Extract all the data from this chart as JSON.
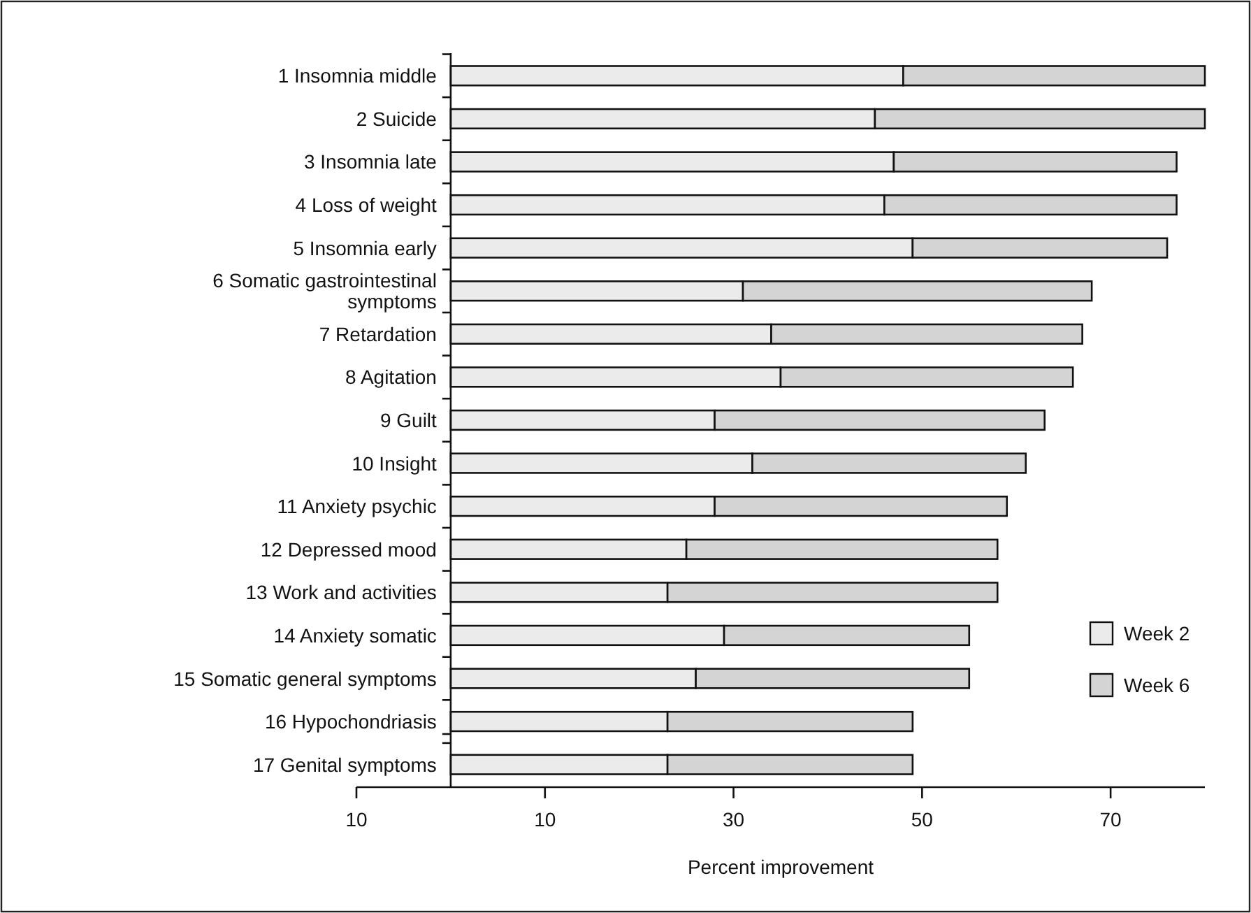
{
  "chart_data": {
    "type": "bar",
    "orientation": "horizontal",
    "stacked": true,
    "xlabel": "Percent improvement",
    "categories": [
      "1 Insomnia middle",
      "2 Suicide",
      "3 Insomnia late",
      "4 Loss of weight",
      "5 Insomnia early",
      "6 Somatic gastrointestinal symptoms",
      "7 Retardation",
      "8 Agitation",
      "9 Guilt",
      "10 Insight",
      "11 Anxiety psychic",
      "12 Depressed mood",
      "13 Work and activities",
      "14 Anxiety somatic",
      "15 Somatic general symptoms",
      "16 Hypochondriasis",
      "17 Genital symptoms"
    ],
    "series": [
      {
        "name": "Week 2",
        "color": "#ebebeb",
        "values": [
          48,
          45,
          47,
          46,
          49,
          31,
          34,
          35,
          28,
          32,
          28,
          25,
          23,
          29,
          26,
          23,
          23
        ]
      },
      {
        "name": "Week 6",
        "color": "#d4d4d4",
        "values": [
          32,
          35,
          30,
          31,
          27,
          37,
          33,
          31,
          35,
          29,
          31,
          33,
          35,
          26,
          29,
          26,
          26
        ]
      }
    ],
    "xlim": [
      -10,
      80
    ],
    "xticks": [
      {
        "value": -10,
        "label": "10"
      },
      10,
      30,
      50,
      70
    ],
    "legend": "bottom right",
    "grid": false
  }
}
